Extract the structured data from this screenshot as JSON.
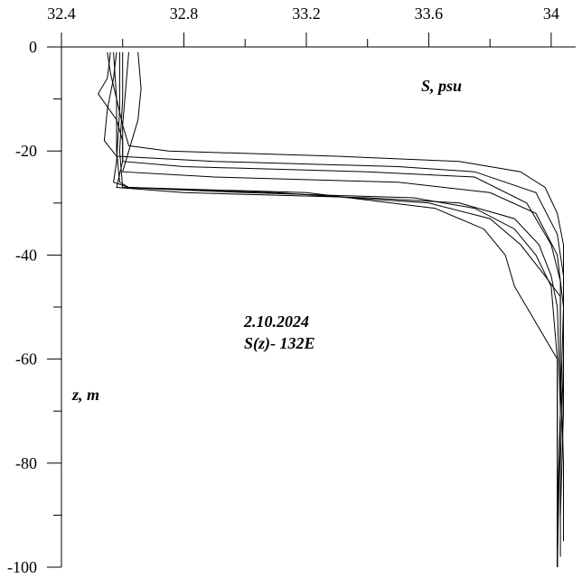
{
  "chart_data": {
    "type": "line",
    "title": "2.10.2024",
    "subtitle": "S(z)- 132E",
    "xlabel": "S, psu",
    "ylabel": "z, m",
    "xlim": [
      32.4,
      34.08
    ],
    "ylim": [
      -100,
      0
    ],
    "x_axis_position": "top",
    "grid": false,
    "legend": "none",
    "x_ticks": [
      32.4,
      32.8,
      33.2,
      33.6,
      34
    ],
    "x_tick_labels": [
      "32.4",
      "32.8",
      "33.2",
      "33.6",
      "34"
    ],
    "y_ticks": [
      0,
      -20,
      -40,
      -60,
      -80,
      -100
    ],
    "y_tick_labels": [
      "0",
      "-20",
      "-40",
      "-60",
      "-80",
      "-100"
    ],
    "series": [
      {
        "points": [
          [
            32.55,
            -1
          ],
          [
            32.56,
            -5
          ],
          [
            32.58,
            -10
          ],
          [
            32.6,
            -15
          ],
          [
            32.62,
            -19
          ],
          [
            32.75,
            -20
          ],
          [
            33.3,
            -21
          ],
          [
            33.7,
            -22
          ],
          [
            33.9,
            -24
          ],
          [
            33.98,
            -27
          ],
          [
            34.02,
            -32
          ],
          [
            34.04,
            -38
          ],
          [
            34.04,
            -50
          ],
          [
            34.03,
            -70
          ],
          [
            34.02,
            -90
          ],
          [
            34.02,
            -100
          ]
        ]
      },
      {
        "points": [
          [
            32.58,
            -1
          ],
          [
            32.57,
            -6
          ],
          [
            32.55,
            -12
          ],
          [
            32.54,
            -18
          ],
          [
            32.58,
            -21
          ],
          [
            32.9,
            -22
          ],
          [
            33.5,
            -23
          ],
          [
            33.75,
            -24
          ],
          [
            33.95,
            -28
          ],
          [
            34.02,
            -36
          ],
          [
            34.04,
            -44
          ],
          [
            34.04,
            -60
          ],
          [
            34.03,
            -80
          ],
          [
            34.03,
            -98
          ]
        ]
      },
      {
        "points": [
          [
            32.62,
            -1
          ],
          [
            32.61,
            -8
          ],
          [
            32.6,
            -15
          ],
          [
            32.6,
            -22
          ],
          [
            32.8,
            -23
          ],
          [
            33.4,
            -24
          ],
          [
            33.75,
            -25
          ],
          [
            33.92,
            -30
          ],
          [
            34.0,
            -38
          ],
          [
            34.03,
            -45
          ],
          [
            34.03,
            -60
          ],
          [
            34.04,
            -80
          ],
          [
            34.04,
            -95
          ]
        ]
      },
      {
        "points": [
          [
            32.65,
            -1
          ],
          [
            32.66,
            -8
          ],
          [
            32.65,
            -14
          ],
          [
            32.62,
            -20
          ],
          [
            32.6,
            -24
          ],
          [
            32.9,
            -25
          ],
          [
            33.5,
            -26
          ],
          [
            33.8,
            -28
          ],
          [
            33.95,
            -32
          ],
          [
            34.02,
            -40
          ],
          [
            34.04,
            -50
          ],
          [
            34.04,
            -70
          ],
          [
            34.03,
            -90
          ]
        ]
      },
      {
        "points": [
          [
            32.56,
            -1
          ],
          [
            32.55,
            -6
          ],
          [
            32.52,
            -9
          ],
          [
            32.58,
            -14
          ],
          [
            32.6,
            -18
          ],
          [
            32.6,
            -22
          ],
          [
            32.58,
            -27
          ],
          [
            32.8,
            -28
          ],
          [
            33.4,
            -29
          ],
          [
            33.7,
            -30
          ],
          [
            33.88,
            -33
          ],
          [
            33.96,
            -38
          ],
          [
            34.0,
            -44
          ],
          [
            34.02,
            -50
          ],
          [
            34.03,
            -70
          ],
          [
            34.02,
            -100
          ]
        ]
      },
      {
        "points": [
          [
            32.6,
            -1
          ],
          [
            32.6,
            -10
          ],
          [
            32.59,
            -20
          ],
          [
            32.6,
            -27
          ],
          [
            33.0,
            -28
          ],
          [
            33.55,
            -29
          ],
          [
            33.75,
            -31
          ],
          [
            33.88,
            -35
          ],
          [
            33.95,
            -40
          ],
          [
            34.0,
            -46
          ],
          [
            34.02,
            -60
          ],
          [
            34.02,
            -80
          ],
          [
            34.02,
            -100
          ]
        ]
      },
      {
        "points": [
          [
            32.57,
            -1
          ],
          [
            32.58,
            -10
          ],
          [
            32.58,
            -20
          ],
          [
            32.59,
            -26
          ],
          [
            32.62,
            -27
          ],
          [
            33.1,
            -28
          ],
          [
            33.6,
            -30
          ],
          [
            33.8,
            -33
          ],
          [
            33.9,
            -38
          ],
          [
            33.98,
            -44
          ],
          [
            34.03,
            -48
          ],
          [
            34.03,
            -70
          ],
          [
            34.02,
            -96
          ]
        ]
      },
      {
        "points": [
          [
            32.59,
            -1
          ],
          [
            32.59,
            -12
          ],
          [
            32.58,
            -22
          ],
          [
            32.57,
            -26
          ],
          [
            32.62,
            -27
          ],
          [
            33.2,
            -28
          ],
          [
            33.62,
            -31
          ],
          [
            33.78,
            -35
          ],
          [
            33.85,
            -40
          ],
          [
            33.88,
            -46
          ],
          [
            33.94,
            -52
          ],
          [
            34.0,
            -58
          ],
          [
            34.02,
            -60
          ],
          [
            34.02,
            -80
          ],
          [
            34.02,
            -100
          ]
        ]
      }
    ]
  }
}
